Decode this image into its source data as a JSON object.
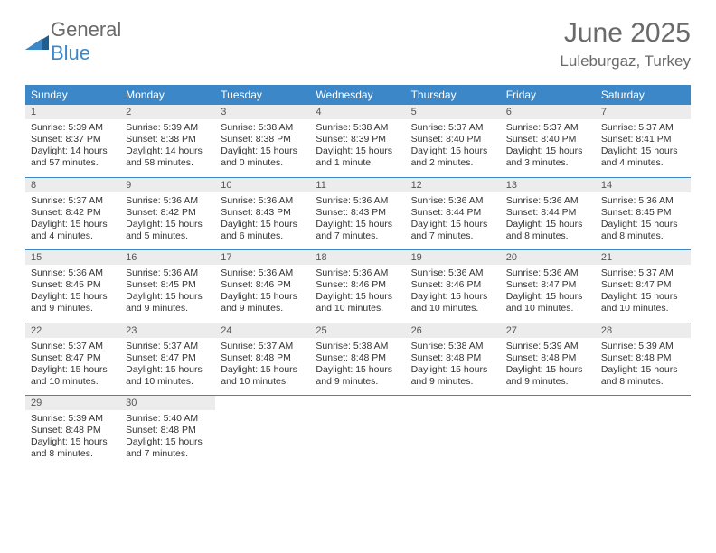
{
  "brand": {
    "text1": "General",
    "text2": "Blue"
  },
  "title": "June 2025",
  "location": "Luleburgaz, Turkey",
  "colors": {
    "header_bg": "#3b87c8",
    "header_fg": "#ffffff",
    "daynum_bg": "#ececec",
    "rule": "#3b87c8",
    "text": "#333333",
    "muted": "#6a6a6a",
    "page_bg": "#ffffff"
  },
  "dayNames": [
    "Sunday",
    "Monday",
    "Tuesday",
    "Wednesday",
    "Thursday",
    "Friday",
    "Saturday"
  ],
  "weeks": [
    [
      {
        "n": "1",
        "sr": "Sunrise: 5:39 AM",
        "ss": "Sunset: 8:37 PM",
        "d1": "Daylight: 14 hours",
        "d2": "and 57 minutes."
      },
      {
        "n": "2",
        "sr": "Sunrise: 5:39 AM",
        "ss": "Sunset: 8:38 PM",
        "d1": "Daylight: 14 hours",
        "d2": "and 58 minutes."
      },
      {
        "n": "3",
        "sr": "Sunrise: 5:38 AM",
        "ss": "Sunset: 8:38 PM",
        "d1": "Daylight: 15 hours",
        "d2": "and 0 minutes."
      },
      {
        "n": "4",
        "sr": "Sunrise: 5:38 AM",
        "ss": "Sunset: 8:39 PM",
        "d1": "Daylight: 15 hours",
        "d2": "and 1 minute."
      },
      {
        "n": "5",
        "sr": "Sunrise: 5:37 AM",
        "ss": "Sunset: 8:40 PM",
        "d1": "Daylight: 15 hours",
        "d2": "and 2 minutes."
      },
      {
        "n": "6",
        "sr": "Sunrise: 5:37 AM",
        "ss": "Sunset: 8:40 PM",
        "d1": "Daylight: 15 hours",
        "d2": "and 3 minutes."
      },
      {
        "n": "7",
        "sr": "Sunrise: 5:37 AM",
        "ss": "Sunset: 8:41 PM",
        "d1": "Daylight: 15 hours",
        "d2": "and 4 minutes."
      }
    ],
    [
      {
        "n": "8",
        "sr": "Sunrise: 5:37 AM",
        "ss": "Sunset: 8:42 PM",
        "d1": "Daylight: 15 hours",
        "d2": "and 4 minutes."
      },
      {
        "n": "9",
        "sr": "Sunrise: 5:36 AM",
        "ss": "Sunset: 8:42 PM",
        "d1": "Daylight: 15 hours",
        "d2": "and 5 minutes."
      },
      {
        "n": "10",
        "sr": "Sunrise: 5:36 AM",
        "ss": "Sunset: 8:43 PM",
        "d1": "Daylight: 15 hours",
        "d2": "and 6 minutes."
      },
      {
        "n": "11",
        "sr": "Sunrise: 5:36 AM",
        "ss": "Sunset: 8:43 PM",
        "d1": "Daylight: 15 hours",
        "d2": "and 7 minutes."
      },
      {
        "n": "12",
        "sr": "Sunrise: 5:36 AM",
        "ss": "Sunset: 8:44 PM",
        "d1": "Daylight: 15 hours",
        "d2": "and 7 minutes."
      },
      {
        "n": "13",
        "sr": "Sunrise: 5:36 AM",
        "ss": "Sunset: 8:44 PM",
        "d1": "Daylight: 15 hours",
        "d2": "and 8 minutes."
      },
      {
        "n": "14",
        "sr": "Sunrise: 5:36 AM",
        "ss": "Sunset: 8:45 PM",
        "d1": "Daylight: 15 hours",
        "d2": "and 8 minutes."
      }
    ],
    [
      {
        "n": "15",
        "sr": "Sunrise: 5:36 AM",
        "ss": "Sunset: 8:45 PM",
        "d1": "Daylight: 15 hours",
        "d2": "and 9 minutes."
      },
      {
        "n": "16",
        "sr": "Sunrise: 5:36 AM",
        "ss": "Sunset: 8:45 PM",
        "d1": "Daylight: 15 hours",
        "d2": "and 9 minutes."
      },
      {
        "n": "17",
        "sr": "Sunrise: 5:36 AM",
        "ss": "Sunset: 8:46 PM",
        "d1": "Daylight: 15 hours",
        "d2": "and 9 minutes."
      },
      {
        "n": "18",
        "sr": "Sunrise: 5:36 AM",
        "ss": "Sunset: 8:46 PM",
        "d1": "Daylight: 15 hours",
        "d2": "and 10 minutes."
      },
      {
        "n": "19",
        "sr": "Sunrise: 5:36 AM",
        "ss": "Sunset: 8:46 PM",
        "d1": "Daylight: 15 hours",
        "d2": "and 10 minutes."
      },
      {
        "n": "20",
        "sr": "Sunrise: 5:36 AM",
        "ss": "Sunset: 8:47 PM",
        "d1": "Daylight: 15 hours",
        "d2": "and 10 minutes."
      },
      {
        "n": "21",
        "sr": "Sunrise: 5:37 AM",
        "ss": "Sunset: 8:47 PM",
        "d1": "Daylight: 15 hours",
        "d2": "and 10 minutes."
      }
    ],
    [
      {
        "n": "22",
        "sr": "Sunrise: 5:37 AM",
        "ss": "Sunset: 8:47 PM",
        "d1": "Daylight: 15 hours",
        "d2": "and 10 minutes."
      },
      {
        "n": "23",
        "sr": "Sunrise: 5:37 AM",
        "ss": "Sunset: 8:47 PM",
        "d1": "Daylight: 15 hours",
        "d2": "and 10 minutes."
      },
      {
        "n": "24",
        "sr": "Sunrise: 5:37 AM",
        "ss": "Sunset: 8:48 PM",
        "d1": "Daylight: 15 hours",
        "d2": "and 10 minutes."
      },
      {
        "n": "25",
        "sr": "Sunrise: 5:38 AM",
        "ss": "Sunset: 8:48 PM",
        "d1": "Daylight: 15 hours",
        "d2": "and 9 minutes."
      },
      {
        "n": "26",
        "sr": "Sunrise: 5:38 AM",
        "ss": "Sunset: 8:48 PM",
        "d1": "Daylight: 15 hours",
        "d2": "and 9 minutes."
      },
      {
        "n": "27",
        "sr": "Sunrise: 5:39 AM",
        "ss": "Sunset: 8:48 PM",
        "d1": "Daylight: 15 hours",
        "d2": "and 9 minutes."
      },
      {
        "n": "28",
        "sr": "Sunrise: 5:39 AM",
        "ss": "Sunset: 8:48 PM",
        "d1": "Daylight: 15 hours",
        "d2": "and 8 minutes."
      }
    ],
    [
      {
        "n": "29",
        "sr": "Sunrise: 5:39 AM",
        "ss": "Sunset: 8:48 PM",
        "d1": "Daylight: 15 hours",
        "d2": "and 8 minutes."
      },
      {
        "n": "30",
        "sr": "Sunrise: 5:40 AM",
        "ss": "Sunset: 8:48 PM",
        "d1": "Daylight: 15 hours",
        "d2": "and 7 minutes."
      },
      null,
      null,
      null,
      null,
      null
    ]
  ]
}
